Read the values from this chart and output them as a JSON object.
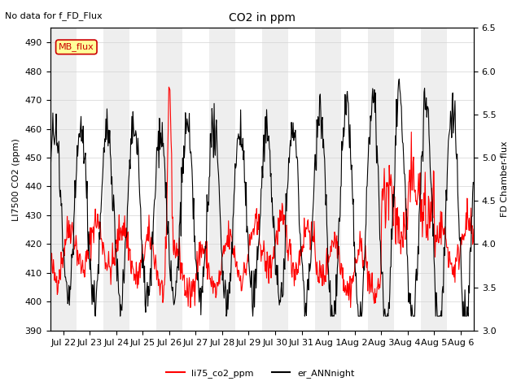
{
  "title": "CO2 in ppm",
  "subtitle": "No data for f_FD_Flux",
  "ylabel_left": "LI7500 CO2 (ppm)",
  "ylabel_right": "FD Chamber-flux",
  "ylim_left": [
    390,
    495
  ],
  "ylim_right": [
    3.0,
    6.5
  ],
  "yticks_left": [
    390,
    400,
    410,
    420,
    430,
    440,
    450,
    460,
    470,
    480,
    490
  ],
  "yticks_right": [
    3.0,
    3.5,
    4.0,
    4.5,
    5.0,
    5.5,
    6.0,
    6.5
  ],
  "date_labels": [
    "Jul 22",
    "Jul 23",
    "Jul 24",
    "Jul 25",
    "Jul 26",
    "Jul 27",
    "Jul 28",
    "Jul 29",
    "Jul 30",
    "Jul 31",
    "Aug 1",
    "Aug 2",
    "Aug 3",
    "Aug 4",
    "Aug 5",
    "Aug 6"
  ],
  "legend_label1": "li75_co2_ppm",
  "legend_label2": "er_ANNnight",
  "legend_box_label": "MB_flux",
  "color_red": "#ff0000",
  "color_black": "#000000",
  "color_legend_box_bg": "#ffff99",
  "color_legend_box_border": "#cc0000",
  "color_bg_band": "#eeeeee",
  "background_color": "#ffffff"
}
